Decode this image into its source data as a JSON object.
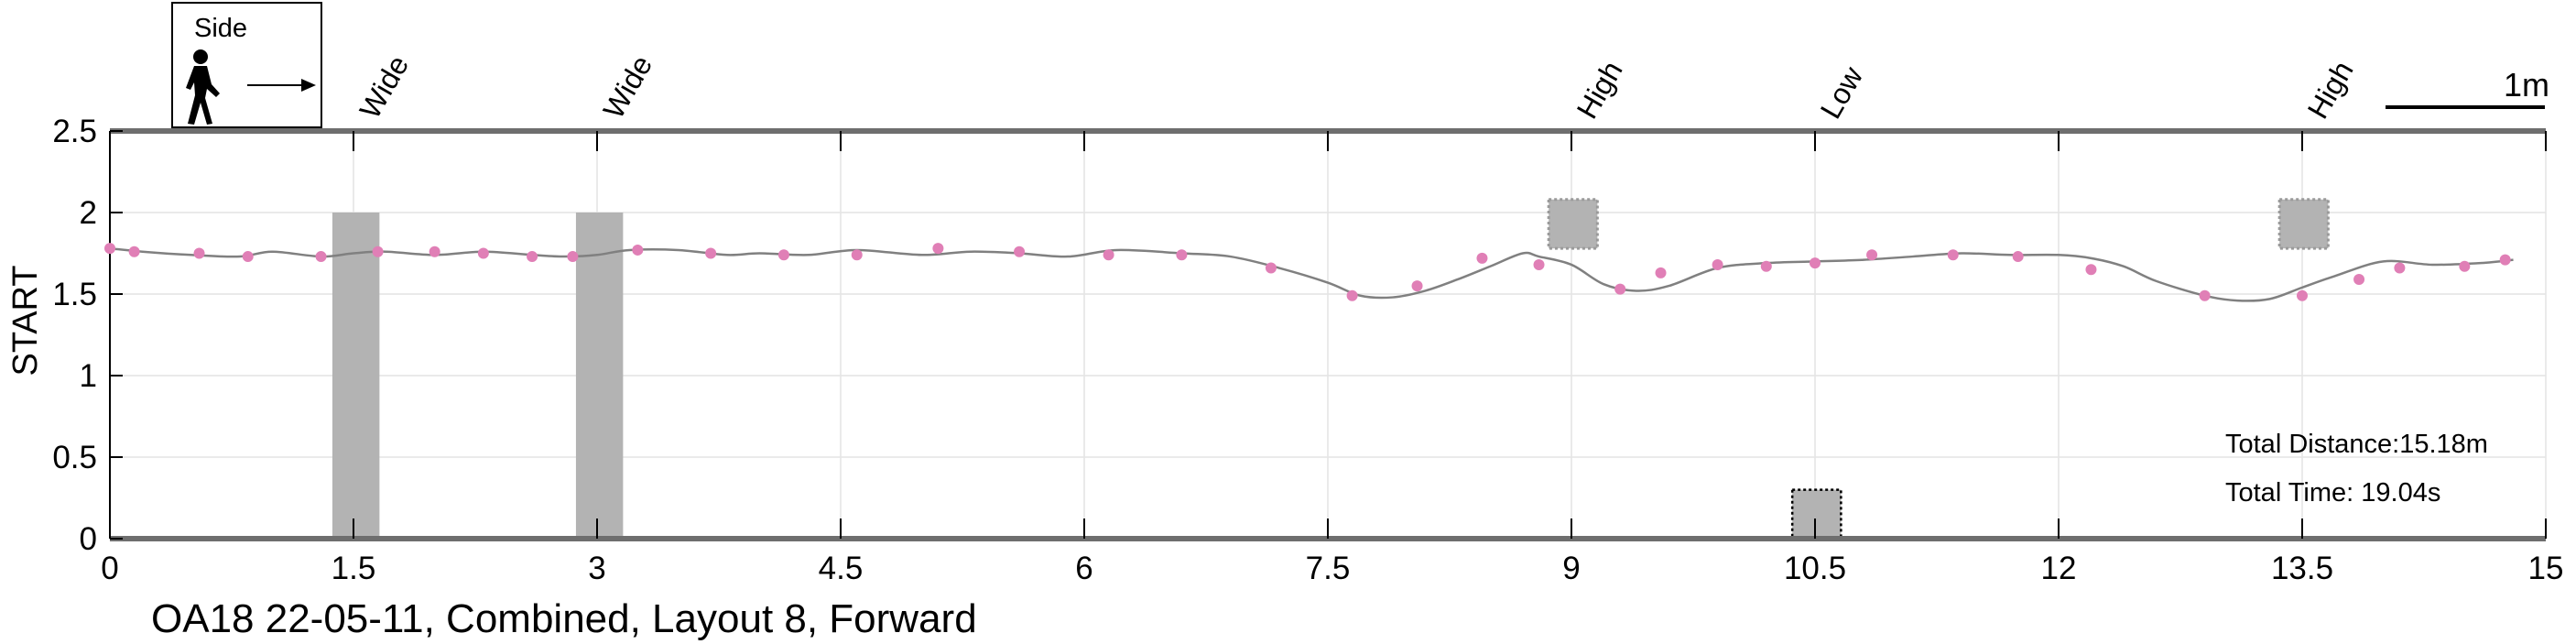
{
  "chart_data": {
    "type": "line",
    "title": "",
    "xlabel": "",
    "ylabel": "START",
    "xlim": [
      0,
      15
    ],
    "ylim": [
      0,
      2.5
    ],
    "x_ticks": [
      0,
      1.5,
      3,
      4.5,
      6,
      7.5,
      9,
      10.5,
      12,
      13.5,
      15
    ],
    "x_tick_labels": [
      "0",
      "1.5",
      "3",
      "4.5",
      "6",
      "7.5",
      "9",
      "10.5",
      "12",
      "13.5",
      "15"
    ],
    "y_ticks": [
      0,
      0.5,
      1,
      1.5,
      2,
      2.5
    ],
    "y_tick_labels": [
      "0",
      "0.5",
      "1",
      "1.5",
      "2",
      "2.5"
    ],
    "grid": true,
    "line_color": "#808080",
    "marker_color": "#e07fb6",
    "obstacle_color": "#b3b3b3",
    "path": {
      "x": [
        0,
        0.2,
        0.5,
        0.8,
        1.0,
        1.3,
        1.5,
        1.7,
        2.0,
        2.3,
        2.6,
        2.8,
        3.0,
        3.2,
        3.5,
        3.8,
        4.0,
        4.3,
        4.6,
        5.0,
        5.3,
        5.6,
        5.9,
        6.2,
        6.6,
        6.9,
        7.2,
        7.5,
        7.7,
        7.9,
        8.1,
        8.3,
        8.5,
        8.7,
        8.8,
        9.0,
        9.2,
        9.4,
        9.6,
        9.9,
        10.2,
        10.5,
        10.8,
        11.1,
        11.4,
        11.7,
        12.0,
        12.2,
        12.4,
        12.6,
        12.9,
        13.1,
        13.3,
        13.5,
        13.7,
        14.0,
        14.3,
        14.6,
        14.8
      ],
      "y": [
        1.78,
        1.76,
        1.74,
        1.73,
        1.76,
        1.73,
        1.75,
        1.76,
        1.74,
        1.76,
        1.74,
        1.73,
        1.74,
        1.77,
        1.77,
        1.74,
        1.75,
        1.74,
        1.77,
        1.74,
        1.76,
        1.75,
        1.73,
        1.77,
        1.75,
        1.73,
        1.66,
        1.57,
        1.49,
        1.48,
        1.52,
        1.59,
        1.67,
        1.75,
        1.73,
        1.68,
        1.56,
        1.52,
        1.55,
        1.66,
        1.69,
        1.7,
        1.71,
        1.73,
        1.75,
        1.74,
        1.74,
        1.72,
        1.67,
        1.58,
        1.49,
        1.46,
        1.47,
        1.54,
        1.61,
        1.7,
        1.68,
        1.69,
        1.71
      ]
    },
    "markers": {
      "x": [
        0,
        0.15,
        0.55,
        0.85,
        1.3,
        1.65,
        2.0,
        2.3,
        2.6,
        2.85,
        3.25,
        3.7,
        4.15,
        4.6,
        5.1,
        5.6,
        6.15,
        6.6,
        7.15,
        7.65,
        8.05,
        8.45,
        8.8,
        9.3,
        9.55,
        9.9,
        10.2,
        10.5,
        10.85,
        11.35,
        11.75,
        12.2,
        12.9,
        13.5,
        13.85,
        14.1,
        14.5,
        14.75
      ],
      "y": [
        1.78,
        1.76,
        1.75,
        1.73,
        1.73,
        1.76,
        1.76,
        1.75,
        1.73,
        1.73,
        1.77,
        1.75,
        1.74,
        1.74,
        1.78,
        1.76,
        1.74,
        1.74,
        1.66,
        1.49,
        1.55,
        1.72,
        1.68,
        1.53,
        1.63,
        1.68,
        1.67,
        1.69,
        1.74,
        1.74,
        1.73,
        1.65,
        1.49,
        1.49,
        1.59,
        1.66,
        1.67,
        1.71
      ]
    },
    "obstacles": [
      {
        "label": "Wide",
        "x0": 1.37,
        "x1": 1.66,
        "y0": 0,
        "y1": 2.0,
        "style": "solid"
      },
      {
        "label": "Wide",
        "x0": 2.87,
        "x1": 3.16,
        "y0": 0,
        "y1": 2.0,
        "style": "solid"
      },
      {
        "label": "High",
        "x0": 8.86,
        "x1": 9.16,
        "y0": 1.78,
        "y1": 2.08,
        "style": "dotted"
      },
      {
        "label": "Low",
        "x0": 10.36,
        "x1": 10.66,
        "y0": 0,
        "y1": 0.3,
        "style": "dotted-dark"
      },
      {
        "label": "High",
        "x0": 13.36,
        "x1": 13.66,
        "y0": 1.78,
        "y1": 2.08,
        "style": "dotted"
      }
    ],
    "annotations": {
      "total_distance": "Total Distance:15.18m",
      "total_time": "Total Time: 19.04s"
    },
    "caption": "OA18 22-05-11, Combined, Layout 8, Forward",
    "scale_bar_label": "1m",
    "direction_box_label": "Side"
  }
}
